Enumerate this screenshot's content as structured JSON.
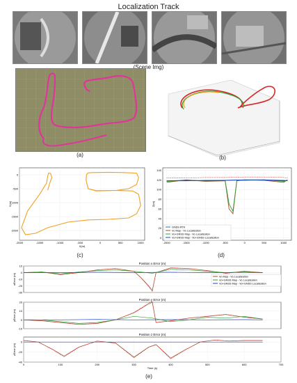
{
  "figure": {
    "title": "Localization Track",
    "scene_caption": "(Scene Img)",
    "panel_labels": [
      "(a)",
      "(b)",
      "(c)",
      "(d)",
      "(e)"
    ]
  },
  "colors": {
    "track_magenta": "#e0359a",
    "gnss_rtk": "#1f77b4",
    "vo_map_vo_loc": "#a0522d",
    "vo_gnss_map_vo_loc": "#2ca02c",
    "vo_gnss_map_vo_gnss_loc": "#1f3fbf",
    "dashed_red": "#d62728",
    "orange_track": "#f0a020",
    "satellite_bg": "#8a8a62"
  },
  "icons": {
    "scene_images": [
      "aerial-fisheye-scene-1",
      "aerial-fisheye-scene-2",
      "aerial-fisheye-scene-3",
      "aerial-fisheye-scene-4"
    ]
  },
  "chart_data": [
    {
      "id": "c",
      "type": "line",
      "title": "",
      "xlabel": "X(m)",
      "ylabel": "Y(m)",
      "xlim": [
        -2000,
        1100
      ],
      "ylim": [
        -2350,
        250
      ],
      "xticks": [
        "-2000",
        "-1500",
        "-1000",
        "-500",
        "0",
        "500",
        "1000"
      ],
      "yticks": [
        "0",
        "-500",
        "-1000",
        "-1500",
        "-2000"
      ],
      "xtick_values": [
        -2000,
        -1500,
        -1000,
        -500,
        0,
        500,
        1000
      ],
      "ytick_values": [
        0,
        -500,
        -1000,
        -1500,
        -2000
      ],
      "series": [
        {
          "color": "orange",
          "x": [
            -1300,
            -1250,
            -1200,
            -1230,
            -1280,
            -1300,
            -1330,
            -1500,
            -1800,
            -1950,
            -1850,
            -1600,
            -1300,
            -800,
            -300,
            200,
            700,
            900,
            1000,
            950,
            800,
            400,
            -100,
            -300,
            -350,
            -340,
            -300,
            -200,
            200,
            600,
            900,
            950,
            900,
            700,
            400,
            -100,
            -300
          ],
          "y": [
            -550,
            -300,
            -100,
            50,
            60,
            -50,
            -300,
            -700,
            -1300,
            -1900,
            -2150,
            -2100,
            -1900,
            -1700,
            -1620,
            -1600,
            -1550,
            -1400,
            -1100,
            -700,
            -580,
            -560,
            -580,
            -500,
            -200,
            0,
            70,
            80,
            90,
            80,
            60,
            -100,
            -350,
            -500,
            -560,
            -570,
            -500
          ]
        }
      ]
    },
    {
      "id": "d",
      "type": "line",
      "title": "",
      "xlabel": "",
      "ylabel": "Z(m)",
      "xlim": [
        -2100,
        1200
      ],
      "ylim": [
        -5,
        145
      ],
      "xticks": [
        "-2000",
        "-1500",
        "-1000",
        "-500",
        "0",
        "500",
        "1000"
      ],
      "yticks": [
        "0",
        "20",
        "40",
        "60",
        "80",
        "100",
        "120",
        "140"
      ],
      "xtick_values": [
        -2000,
        -1500,
        -1000,
        -500,
        0,
        500,
        1000
      ],
      "ytick_values": [
        0,
        20,
        40,
        60,
        80,
        100,
        120,
        140
      ],
      "legend": [
        "GNSS RTK",
        "Vo Map - Vo Localization",
        "Vo+GNSS Map - Vo Localization",
        "Vo+GNSS Map - Vo+GNSS Localization"
      ],
      "legend_placement": "lower-left",
      "series": [
        {
          "name": "GNSS RTK",
          "x": [
            -2000,
            -1500,
            -1000,
            -500,
            0,
            500,
            1000,
            1100
          ],
          "y": [
            118,
            118,
            119,
            119,
            120,
            120,
            119,
            118
          ]
        },
        {
          "name": "Vo Map - Vo Localization",
          "x": [
            -2000,
            -1500,
            -1000,
            -500,
            -400,
            -300,
            -200,
            0,
            500,
            1000,
            1100
          ],
          "y": [
            115,
            120,
            117,
            118,
            60,
            50,
            118,
            120,
            119,
            115,
            120
          ]
        },
        {
          "name": "Vo+GNSS Map - Vo Localization",
          "x": [
            -2000,
            -1500,
            -1000,
            -500,
            -400,
            -300,
            -200,
            0,
            500,
            1000,
            1100
          ],
          "y": [
            117,
            119,
            118,
            119,
            70,
            55,
            119,
            119,
            120,
            117,
            119
          ]
        },
        {
          "name": "Vo+GNSS Map - Vo+GNSS Localization",
          "x": [
            -2000,
            -1500,
            -1000,
            -500,
            0,
            500,
            1000,
            1100
          ],
          "y": [
            118,
            119,
            118,
            119,
            120,
            120,
            118,
            119
          ]
        }
      ]
    },
    {
      "id": "e1",
      "type": "line",
      "title": "Position x Error (m)",
      "xlabel": "",
      "ylabel": "xError (m)",
      "xlim": [
        0,
        700
      ],
      "ylim": [
        -30,
        10
      ],
      "yticks": [
        "10",
        "0",
        "-10",
        "-20",
        "-30"
      ],
      "ytick_values": [
        10,
        0,
        -10,
        -20,
        -30
      ],
      "legend": [
        "Vo Map - Vo Localization",
        "Vo+GNSS Map - Vo Localization",
        "Vo+GNSS Map - Vo+GNSS Localization"
      ],
      "legend_placement": "right",
      "series": [
        {
          "name": "Vo Map - Vo Localization",
          "x": [
            0,
            50,
            100,
            150,
            200,
            250,
            300,
            320,
            340,
            350,
            360,
            400,
            450,
            500,
            550,
            600,
            650
          ],
          "y": [
            0,
            1,
            -3,
            0,
            4,
            6,
            2,
            -8,
            -20,
            -27,
            0,
            7,
            6,
            3,
            -1,
            2,
            0
          ]
        },
        {
          "name": "Vo+GNSS Map - Vo Localization",
          "x": [
            0,
            50,
            100,
            150,
            200,
            250,
            300,
            350,
            400,
            450,
            500,
            550,
            600,
            650
          ],
          "y": [
            0,
            1,
            -2,
            1,
            3,
            4,
            2,
            -1,
            5,
            4,
            2,
            0,
            1,
            0
          ]
        },
        {
          "name": "Vo+GNSS Map - Vo+GNSS Localization",
          "x": [
            0,
            100,
            200,
            300,
            400,
            500,
            600,
            650
          ],
          "y": [
            0,
            0,
            0.5,
            0,
            0.5,
            0,
            0.3,
            0
          ]
        }
      ]
    },
    {
      "id": "e2",
      "type": "line",
      "title": "Position y Error (m)",
      "xlabel": "",
      "ylabel": "yError (m)",
      "xlim": [
        0,
        700
      ],
      "ylim": [
        -10,
        20
      ],
      "yticks": [
        "20",
        "10",
        "0",
        "-10"
      ],
      "ytick_values": [
        20,
        10,
        0,
        -10
      ],
      "series": [
        {
          "name": "Vo Map - Vo Localization",
          "x": [
            0,
            50,
            100,
            150,
            200,
            250,
            300,
            340,
            350,
            360,
            400,
            450,
            500,
            550,
            600,
            650
          ],
          "y": [
            0,
            -1,
            -3,
            -5,
            -4,
            0,
            8,
            18,
            20,
            -3,
            -1,
            2,
            4,
            6,
            3,
            1
          ]
        },
        {
          "name": "Vo+GNSS Map - Vo Localization",
          "x": [
            0,
            50,
            100,
            150,
            200,
            250,
            300,
            350,
            400,
            450,
            500,
            550,
            600,
            650
          ],
          "y": [
            0,
            0,
            -2,
            -4,
            -3,
            0,
            4,
            2,
            -2,
            0,
            3,
            2,
            4,
            1
          ]
        },
        {
          "name": "Vo+GNSS Map - Vo+GNSS Localization",
          "x": [
            0,
            100,
            200,
            300,
            400,
            500,
            600,
            650
          ],
          "y": [
            0,
            0,
            0.5,
            0,
            0.3,
            0,
            0.3,
            0
          ]
        }
      ]
    },
    {
      "id": "e3",
      "type": "line",
      "title": "Position z Error (m)",
      "xlabel": "Time (s)",
      "ylabel": "zError (m)",
      "xlim": [
        0,
        700
      ],
      "ylim": [
        -40,
        10
      ],
      "yticks": [
        "0",
        "-20",
        "-40"
      ],
      "ytick_values": [
        0,
        -20,
        -40
      ],
      "xticks": [
        "0",
        "100",
        "200",
        "300",
        "400",
        "500",
        "600",
        "700"
      ],
      "xtick_values": [
        0,
        100,
        200,
        300,
        400,
        500,
        600,
        700
      ],
      "series": [
        {
          "name": "Vo Map - Vo Localization",
          "x": [
            0,
            40,
            80,
            110,
            150,
            200,
            250,
            300,
            340,
            360,
            400,
            440,
            480,
            520,
            560,
            600,
            650
          ],
          "y": [
            3,
            0,
            -15,
            -28,
            -10,
            2,
            -2,
            -30,
            -10,
            -5,
            -32,
            -15,
            0,
            4,
            2,
            3,
            3
          ]
        },
        {
          "name": "Vo+GNSS Map - Vo+GNSS Localization",
          "x": [
            0,
            100,
            200,
            300,
            400,
            500,
            600,
            650
          ],
          "y": [
            0,
            0,
            0,
            0,
            0,
            0,
            0,
            0
          ]
        }
      ]
    }
  ]
}
